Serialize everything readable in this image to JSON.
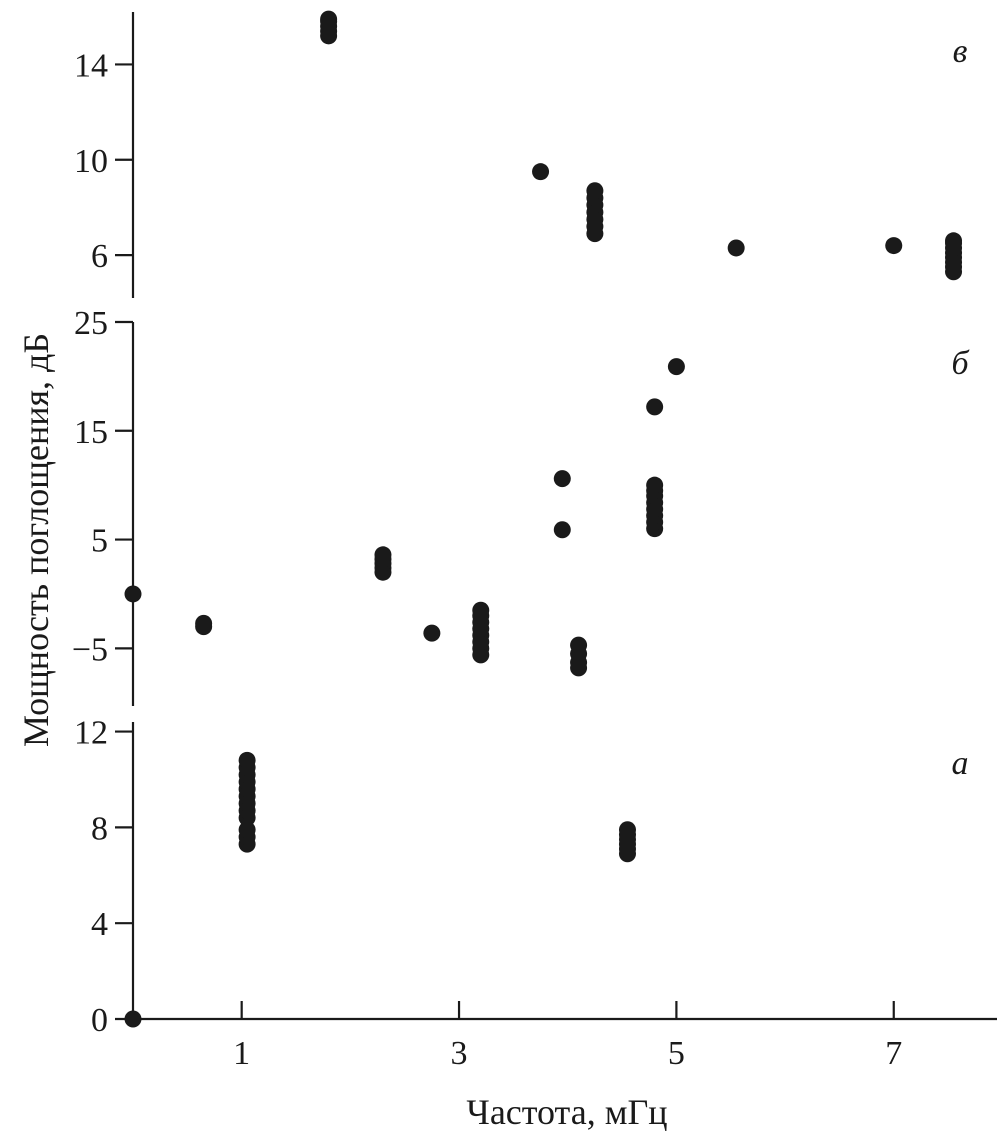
{
  "chart_data": {
    "type": "scatter",
    "xlabel": "Частота, мГц",
    "ylabel": "Мощность поглощения, дБ",
    "xlim": [
      0,
      7.95
    ],
    "x_ticks": [
      1,
      3,
      5,
      7
    ],
    "x_tick_labels": [
      "1",
      "3",
      "5",
      "7"
    ],
    "grid": false,
    "panels": [
      {
        "label": "в",
        "ylim": [
          4.2,
          16.2
        ],
        "y_ticks": [
          6,
          10,
          14
        ],
        "y_tick_labels": [
          "6",
          "10",
          "14"
        ],
        "points": [
          [
            1.8,
            15.2
          ],
          [
            1.8,
            15.4
          ],
          [
            1.8,
            15.6
          ],
          [
            1.8,
            15.8
          ],
          [
            1.8,
            15.9
          ],
          [
            3.75,
            9.5
          ],
          [
            4.25,
            6.9
          ],
          [
            4.25,
            7.2
          ],
          [
            4.25,
            7.5
          ],
          [
            4.25,
            7.8
          ],
          [
            4.25,
            8.1
          ],
          [
            4.25,
            8.4
          ],
          [
            4.25,
            8.7
          ],
          [
            5.55,
            6.3
          ],
          [
            7.0,
            6.4
          ],
          [
            7.55,
            5.3
          ],
          [
            7.55,
            5.5
          ],
          [
            7.55,
            5.7
          ],
          [
            7.55,
            5.9
          ],
          [
            7.55,
            6.1
          ],
          [
            7.55,
            6.3
          ],
          [
            7.55,
            6.5
          ],
          [
            7.55,
            6.6
          ]
        ]
      },
      {
        "label": "б",
        "ylim": [
          -10.3,
          25
        ],
        "y_ticks": [
          -5,
          5,
          15,
          25
        ],
        "y_tick_labels": [
          "−5",
          "5",
          "15",
          "25"
        ],
        "points": [
          [
            0.0,
            0.0
          ],
          [
            0.65,
            -3.0
          ],
          [
            0.65,
            -2.7
          ],
          [
            2.3,
            2.0
          ],
          [
            2.3,
            2.4
          ],
          [
            2.3,
            2.8
          ],
          [
            2.3,
            3.2
          ],
          [
            2.3,
            3.6
          ],
          [
            2.75,
            -3.6
          ],
          [
            3.2,
            -5.6
          ],
          [
            3.2,
            -5.0
          ],
          [
            3.2,
            -4.4
          ],
          [
            3.2,
            -3.8
          ],
          [
            3.2,
            -3.2
          ],
          [
            3.2,
            -2.6
          ],
          [
            3.2,
            -2.0
          ],
          [
            3.2,
            -1.5
          ],
          [
            3.95,
            10.6
          ],
          [
            3.95,
            5.9
          ],
          [
            4.1,
            -6.8
          ],
          [
            4.1,
            -6.3
          ],
          [
            4.1,
            -5.5
          ],
          [
            4.1,
            -4.7
          ],
          [
            4.8,
            6.0
          ],
          [
            4.8,
            6.6
          ],
          [
            4.8,
            7.2
          ],
          [
            4.8,
            7.8
          ],
          [
            4.8,
            8.4
          ],
          [
            4.8,
            9.0
          ],
          [
            4.8,
            9.5
          ],
          [
            4.8,
            10.0
          ],
          [
            4.8,
            17.2
          ],
          [
            5.0,
            20.9
          ]
        ]
      },
      {
        "label": "а",
        "ylim": [
          0,
          12.4
        ],
        "y_ticks": [
          0,
          4,
          8,
          12
        ],
        "y_tick_labels": [
          "0",
          "4",
          "8",
          "12"
        ],
        "points": [
          [
            0.0,
            0.0
          ],
          [
            1.05,
            7.3
          ],
          [
            1.05,
            7.6
          ],
          [
            1.05,
            7.9
          ],
          [
            1.05,
            8.4
          ],
          [
            1.05,
            8.7
          ],
          [
            1.05,
            9.0
          ],
          [
            1.05,
            9.3
          ],
          [
            1.05,
            9.6
          ],
          [
            1.05,
            9.9
          ],
          [
            1.05,
            10.2
          ],
          [
            1.05,
            10.5
          ],
          [
            1.05,
            10.8
          ],
          [
            4.55,
            6.9
          ],
          [
            4.55,
            7.1
          ],
          [
            4.55,
            7.3
          ],
          [
            4.55,
            7.5
          ],
          [
            4.55,
            7.7
          ],
          [
            4.55,
            7.9
          ]
        ]
      }
    ]
  }
}
